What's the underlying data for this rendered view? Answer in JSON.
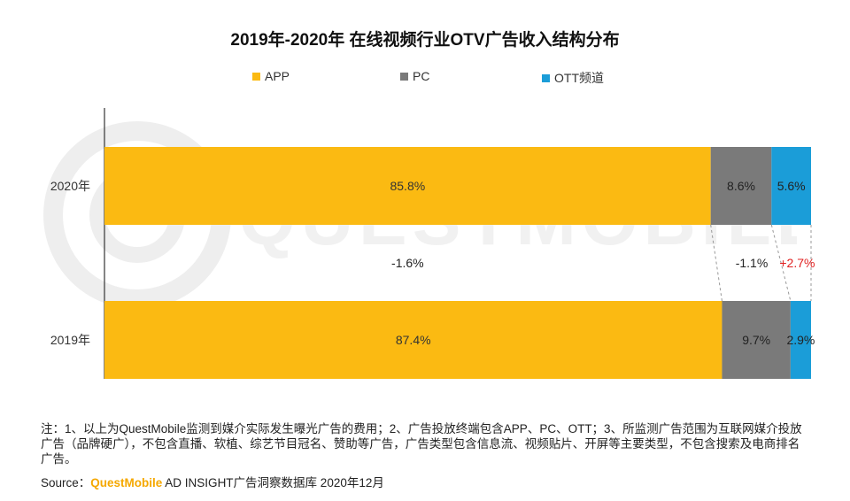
{
  "title": "2019年-2020年 在线视频行业OTV广告收入结构分布",
  "legend": [
    {
      "label": "APP",
      "color": "#fbba12"
    },
    {
      "label": "PC",
      "color": "#7a7a7a"
    },
    {
      "label": "OTT频道",
      "color": "#1b9dd8"
    }
  ],
  "watermark": "QUESTMOBILE",
  "chart_data": {
    "type": "bar",
    "orientation": "horizontal",
    "stacked": true,
    "percent_stacked": true,
    "categories": [
      "2020年",
      "2019年"
    ],
    "series": [
      {
        "name": "APP",
        "values": [
          85.8,
          87.4
        ],
        "labels": [
          "85.8%",
          "87.4%"
        ],
        "color": "#fbba12"
      },
      {
        "name": "PC",
        "values": [
          8.6,
          9.7
        ],
        "labels": [
          "8.6%",
          "9.7%"
        ],
        "color": "#7a7a7a"
      },
      {
        "name": "OTT频道",
        "values": [
          5.6,
          2.9
        ],
        "labels": [
          "5.6%",
          "2.9%"
        ],
        "color": "#1b9dd8"
      }
    ],
    "changes": [
      {
        "series": "APP",
        "label": "-1.6%",
        "color": "#222222"
      },
      {
        "series": "PC",
        "label": "-1.1%",
        "color": "#222222"
      },
      {
        "series": "OTT频道",
        "label": "+2.7%",
        "color": "#e02020"
      }
    ],
    "xlim": [
      0,
      100
    ],
    "legend_position": "top",
    "grid": false
  },
  "notes": "注：1、以上为QuestMobile监测到媒介实际发生曝光广告的费用；2、广告投放终端包含APP、PC、OTT；3、所监测广告范围为互联网媒介投放广告（品牌硬广），不包含直播、软植、综艺节目冠名、赞助等广告，广告类型包含信息流、视频贴片、开屏等主要类型，不包含搜索及电商排名广告。",
  "source": {
    "prefix": "Source：",
    "brand": "QuestMobile",
    "suffix": " AD INSIGHT广告洞察数据库 2020年12月"
  }
}
